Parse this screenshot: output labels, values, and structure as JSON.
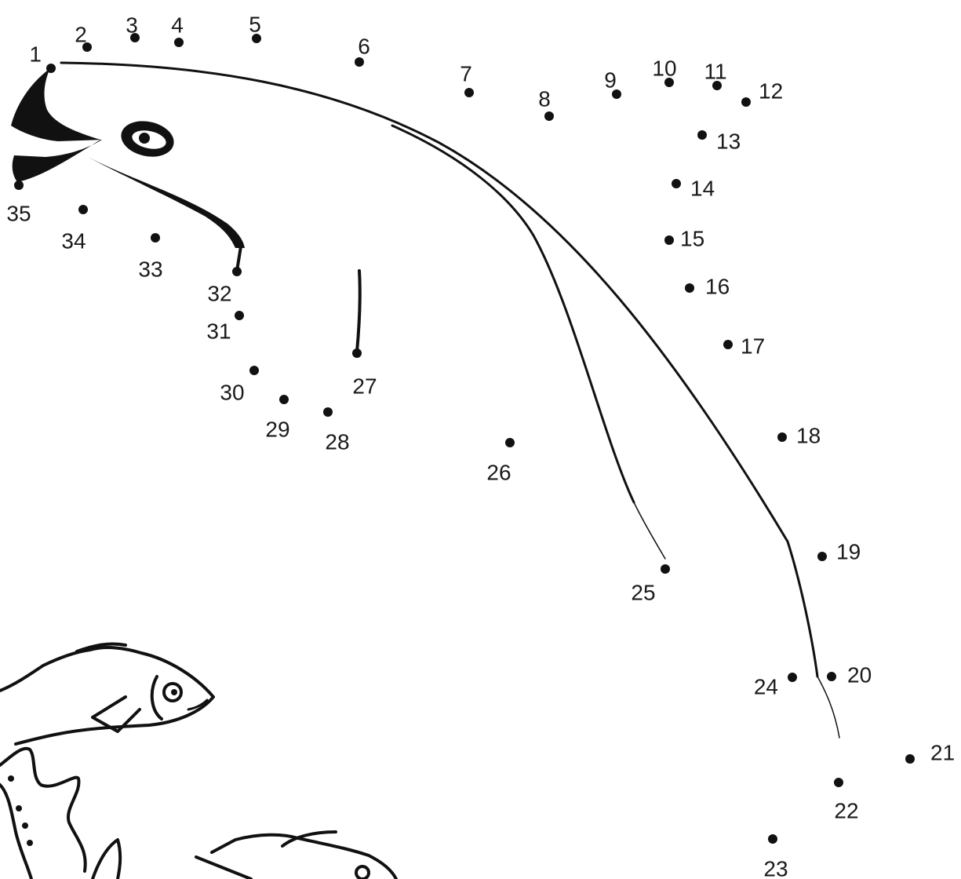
{
  "puzzle": {
    "dots": [
      {
        "n": "1"
      },
      {
        "n": "2"
      },
      {
        "n": "3"
      },
      {
        "n": "4"
      },
      {
        "n": "5"
      },
      {
        "n": "6"
      },
      {
        "n": "7"
      },
      {
        "n": "8"
      },
      {
        "n": "9"
      },
      {
        "n": "10"
      },
      {
        "n": "11"
      },
      {
        "n": "12"
      },
      {
        "n": "13"
      },
      {
        "n": "14"
      },
      {
        "n": "15"
      },
      {
        "n": "16"
      },
      {
        "n": "17"
      },
      {
        "n": "18"
      },
      {
        "n": "19"
      },
      {
        "n": "20"
      },
      {
        "n": "21"
      },
      {
        "n": "22"
      },
      {
        "n": "23"
      },
      {
        "n": "24"
      },
      {
        "n": "25"
      },
      {
        "n": "26"
      },
      {
        "n": "27"
      },
      {
        "n": "28"
      },
      {
        "n": "29"
      },
      {
        "n": "30"
      },
      {
        "n": "31"
      },
      {
        "n": "32"
      },
      {
        "n": "33"
      },
      {
        "n": "34"
      },
      {
        "n": "35"
      }
    ]
  },
  "colors": {
    "ink": "#111111",
    "paper": "#ffffff"
  }
}
